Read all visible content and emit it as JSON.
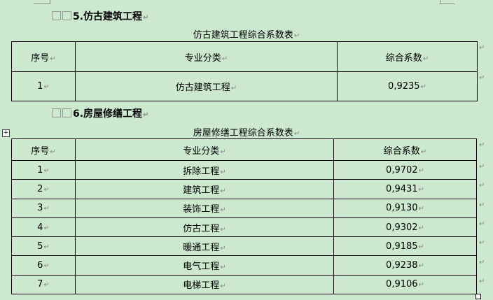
{
  "section5": {
    "heading": "5.仿古建筑工程",
    "table_title": "仿古建筑工程综合系数表",
    "headers": [
      "序号",
      "专业分类",
      "综合系数"
    ],
    "rows": [
      [
        "1",
        "仿古建筑工程",
        "0,9235"
      ]
    ]
  },
  "section6": {
    "heading": "6.房屋修缮工程",
    "table_title": "房屋修缮工程综合系数表",
    "headers": [
      "序号",
      "专业分类",
      "综合系数"
    ],
    "rows": [
      [
        "1",
        "拆除工程",
        "0,9702"
      ],
      [
        "2",
        "建筑工程",
        "0,9431"
      ],
      [
        "3",
        "装饰工程",
        "0,9130"
      ],
      [
        "4",
        "仿古工程",
        "0,9302"
      ],
      [
        "5",
        "暖通工程",
        "0,9185"
      ],
      [
        "6",
        "电气工程",
        "0,9238"
      ],
      [
        "7",
        "电梯工程",
        "0,9106"
      ]
    ]
  },
  "paragraph_mark": "↵"
}
